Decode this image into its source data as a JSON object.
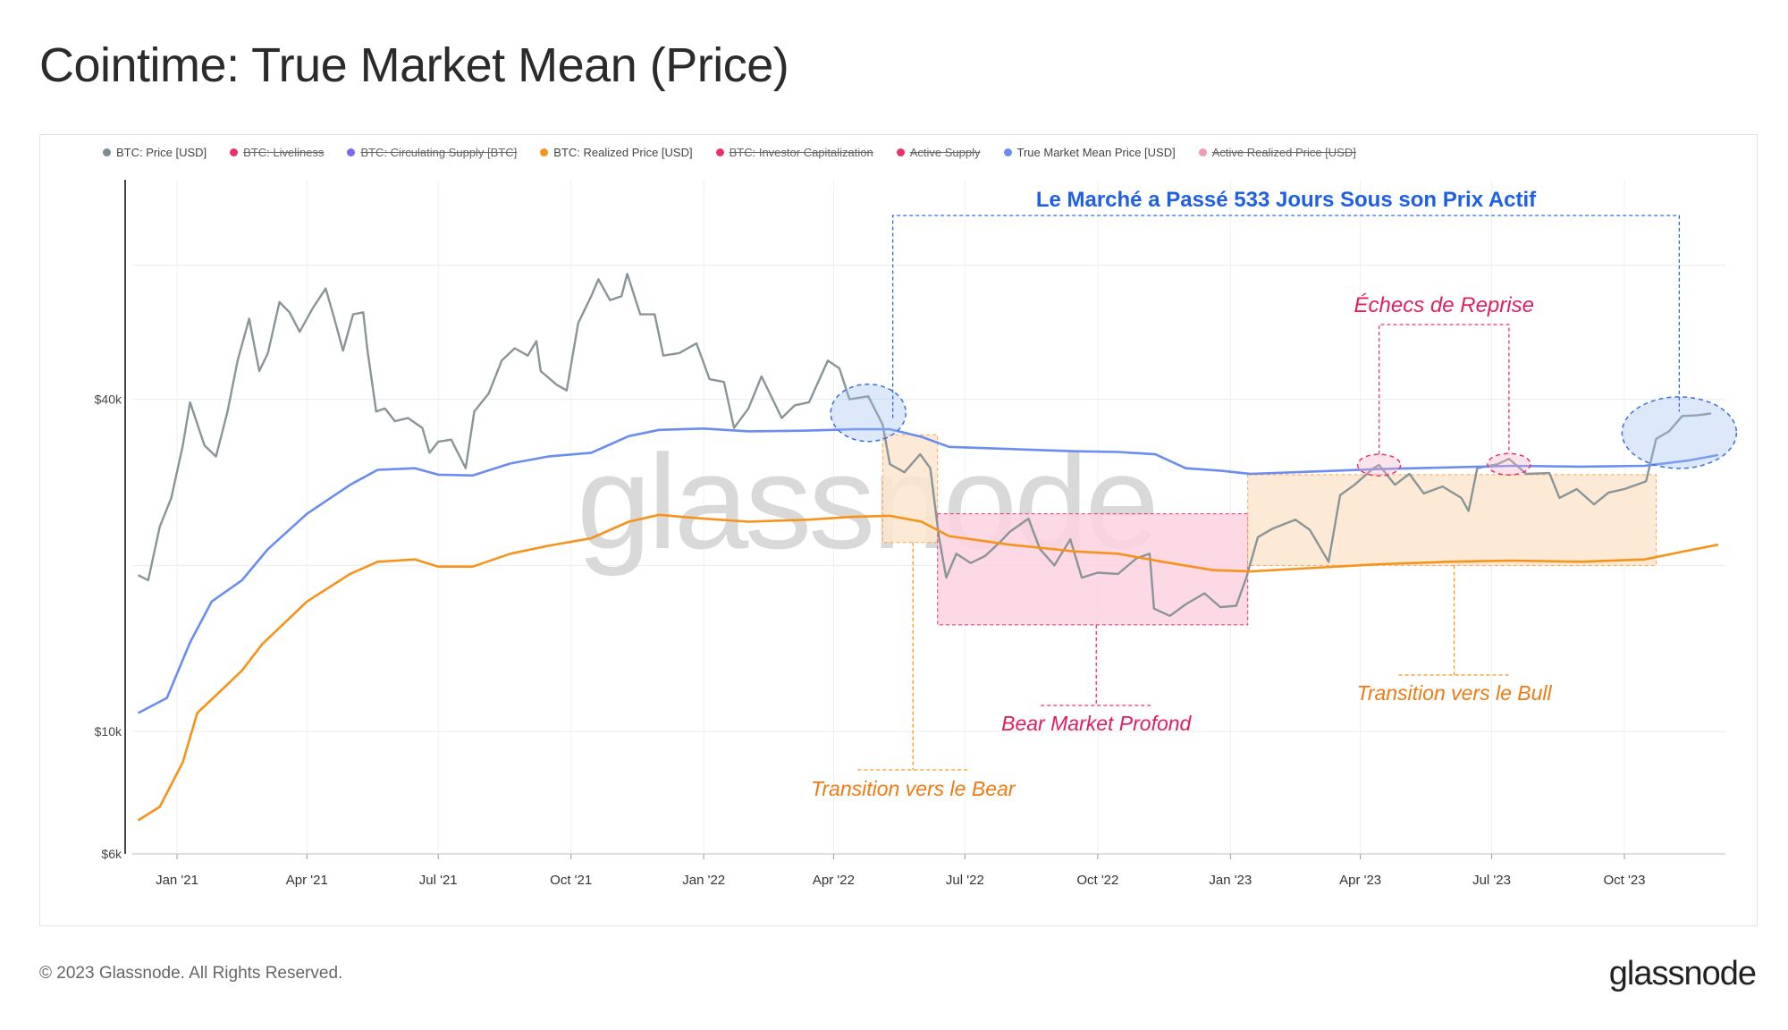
{
  "title": "Cointime: True Market Mean (Price)",
  "footer": {
    "copyright": "© 2023 Glassnode. All Rights Reserved.",
    "logo_text": "glassnode"
  },
  "watermark": "glassnode",
  "legend": [
    {
      "label": "BTC: Price [USD]",
      "color": "#7f8c8d",
      "active": true
    },
    {
      "label": "BTC: Liveliness",
      "color": "#e8336a",
      "active": false
    },
    {
      "label": "BTC: Circulating Supply [BTC]",
      "color": "#7b68ee",
      "active": false
    },
    {
      "label": "BTC: Realized Price [USD]",
      "color": "#f7931a",
      "active": true
    },
    {
      "label": "BTC: Investor Capitalization",
      "color": "#e8336a",
      "active": false
    },
    {
      "label": "Active Supply",
      "color": "#e8336a",
      "active": false
    },
    {
      "label": "True Market Mean Price [USD]",
      "color": "#6b8cf0",
      "active": true
    },
    {
      "label": "Active Realized Price [USD]",
      "color": "#f39ab8",
      "active": false
    }
  ],
  "annotations": {
    "days_below": "Le Marché a Passé 533 Jours Sous son Prix Actif",
    "failed_recovery": "Échecs de Reprise",
    "deep_bear": "Bear Market Profond",
    "to_bear": "Transition vers le Bear",
    "to_bull": "Transition vers le Bull"
  },
  "chart_data": {
    "type": "line",
    "y_scale": "log",
    "ylim": [
      6000,
      100000
    ],
    "y_ticks": [
      {
        "value": 6000,
        "label": "$6k"
      },
      {
        "value": 10000,
        "label": "$10k"
      },
      {
        "value": 40000,
        "label": "$40k"
      }
    ],
    "x_ticks": [
      {
        "date": "2021-01-01",
        "label": "Jan '21"
      },
      {
        "date": "2021-04-01",
        "label": "Apr '21"
      },
      {
        "date": "2021-07-01",
        "label": "Jul '21"
      },
      {
        "date": "2021-10-01",
        "label": "Oct '21"
      },
      {
        "date": "2022-01-01",
        "label": "Jan '22"
      },
      {
        "date": "2022-04-01",
        "label": "Apr '22"
      },
      {
        "date": "2022-07-01",
        "label": "Jul '22"
      },
      {
        "date": "2022-10-01",
        "label": "Oct '22"
      },
      {
        "date": "2023-01-01",
        "label": "Jan '23"
      },
      {
        "date": "2023-04-01",
        "label": "Apr '23"
      },
      {
        "date": "2023-07-01",
        "label": "Jul '23"
      },
      {
        "date": "2023-10-01",
        "label": "Oct '23"
      }
    ],
    "xlim": [
      "2020-12-01",
      "2023-12-10"
    ],
    "series": [
      {
        "name": "BTC: Price [USD]",
        "color": "#8a9598",
        "points": [
          [
            "2020-12-05",
            19200
          ],
          [
            "2020-12-12",
            18800
          ],
          [
            "2020-12-20",
            23500
          ],
          [
            "2020-12-28",
            26500
          ],
          [
            "2021-01-05",
            33000
          ],
          [
            "2021-01-10",
            39500
          ],
          [
            "2021-01-20",
            33000
          ],
          [
            "2021-01-28",
            31500
          ],
          [
            "2021-02-05",
            38000
          ],
          [
            "2021-02-12",
            47000
          ],
          [
            "2021-02-20",
            56000
          ],
          [
            "2021-02-27",
            45000
          ],
          [
            "2021-03-05",
            48500
          ],
          [
            "2021-03-13",
            60000
          ],
          [
            "2021-03-20",
            57500
          ],
          [
            "2021-03-27",
            53000
          ],
          [
            "2021-04-05",
            58500
          ],
          [
            "2021-04-14",
            63500
          ],
          [
            "2021-04-20",
            56000
          ],
          [
            "2021-04-26",
            49000
          ],
          [
            "2021-05-03",
            57000
          ],
          [
            "2021-05-10",
            57500
          ],
          [
            "2021-05-13",
            49000
          ],
          [
            "2021-05-19",
            38000
          ],
          [
            "2021-05-25",
            38500
          ],
          [
            "2021-06-01",
            36500
          ],
          [
            "2021-06-10",
            37000
          ],
          [
            "2021-06-20",
            35500
          ],
          [
            "2021-06-25",
            32000
          ],
          [
            "2021-07-01",
            33500
          ],
          [
            "2021-07-10",
            33800
          ],
          [
            "2021-07-20",
            30000
          ],
          [
            "2021-07-26",
            38000
          ],
          [
            "2021-08-05",
            41000
          ],
          [
            "2021-08-14",
            47000
          ],
          [
            "2021-08-23",
            49500
          ],
          [
            "2021-09-01",
            48000
          ],
          [
            "2021-09-07",
            51000
          ],
          [
            "2021-09-10",
            45000
          ],
          [
            "2021-09-21",
            42500
          ],
          [
            "2021-09-28",
            41500
          ],
          [
            "2021-10-06",
            55000
          ],
          [
            "2021-10-15",
            61500
          ],
          [
            "2021-10-20",
            66000
          ],
          [
            "2021-10-28",
            60500
          ],
          [
            "2021-11-05",
            61500
          ],
          [
            "2021-11-09",
            67500
          ],
          [
            "2021-11-18",
            57000
          ],
          [
            "2021-11-28",
            57000
          ],
          [
            "2021-12-04",
            48000
          ],
          [
            "2021-12-15",
            48500
          ],
          [
            "2021-12-27",
            50500
          ],
          [
            "2022-01-05",
            43500
          ],
          [
            "2022-01-15",
            43000
          ],
          [
            "2022-01-22",
            35500
          ],
          [
            "2022-02-01",
            38500
          ],
          [
            "2022-02-10",
            44000
          ],
          [
            "2022-02-24",
            37000
          ],
          [
            "2022-03-05",
            39000
          ],
          [
            "2022-03-15",
            39500
          ],
          [
            "2022-03-28",
            47000
          ],
          [
            "2022-04-05",
            45500
          ],
          [
            "2022-04-12",
            40000
          ],
          [
            "2022-04-25",
            40500
          ],
          [
            "2022-05-05",
            36000
          ],
          [
            "2022-05-10",
            30500
          ],
          [
            "2022-05-20",
            29500
          ],
          [
            "2022-05-31",
            31800
          ],
          [
            "2022-06-07",
            30000
          ],
          [
            "2022-06-13",
            22500
          ],
          [
            "2022-06-18",
            19000
          ],
          [
            "2022-06-25",
            21000
          ],
          [
            "2022-07-05",
            20200
          ],
          [
            "2022-07-15",
            20800
          ],
          [
            "2022-07-25",
            22000
          ],
          [
            "2022-08-01",
            23000
          ],
          [
            "2022-08-14",
            24300
          ],
          [
            "2022-08-22",
            21400
          ],
          [
            "2022-09-01",
            20000
          ],
          [
            "2022-09-12",
            22300
          ],
          [
            "2022-09-20",
            19000
          ],
          [
            "2022-10-01",
            19400
          ],
          [
            "2022-10-15",
            19300
          ],
          [
            "2022-10-28",
            20600
          ],
          [
            "2022-11-06",
            21000
          ],
          [
            "2022-11-09",
            16700
          ],
          [
            "2022-11-20",
            16200
          ],
          [
            "2022-12-01",
            17000
          ],
          [
            "2022-12-14",
            17800
          ],
          [
            "2022-12-25",
            16800
          ],
          [
            "2023-01-05",
            16900
          ],
          [
            "2023-01-12",
            19000
          ],
          [
            "2023-01-20",
            22500
          ],
          [
            "2023-01-30",
            23300
          ],
          [
            "2023-02-15",
            24200
          ],
          [
            "2023-02-25",
            23200
          ],
          [
            "2023-03-10",
            20300
          ],
          [
            "2023-03-18",
            26800
          ],
          [
            "2023-03-28",
            28000
          ],
          [
            "2023-04-10",
            30000
          ],
          [
            "2023-04-14",
            30400
          ],
          [
            "2023-04-25",
            28000
          ],
          [
            "2023-05-05",
            29300
          ],
          [
            "2023-05-15",
            27000
          ],
          [
            "2023-05-28",
            27800
          ],
          [
            "2023-06-10",
            26500
          ],
          [
            "2023-06-15",
            25100
          ],
          [
            "2023-06-21",
            30000
          ],
          [
            "2023-07-05",
            30500
          ],
          [
            "2023-07-13",
            31200
          ],
          [
            "2023-07-25",
            29300
          ],
          [
            "2023-08-10",
            29400
          ],
          [
            "2023-08-17",
            26500
          ],
          [
            "2023-08-29",
            27500
          ],
          [
            "2023-09-10",
            25800
          ],
          [
            "2023-09-20",
            27100
          ],
          [
            "2023-10-01",
            27500
          ],
          [
            "2023-10-16",
            28400
          ],
          [
            "2023-10-23",
            33900
          ],
          [
            "2023-11-01",
            35000
          ],
          [
            "2023-11-10",
            37300
          ],
          [
            "2023-11-20",
            37400
          ],
          [
            "2023-11-30",
            37700
          ]
        ]
      },
      {
        "name": "BTC: Realized Price [USD]",
        "color": "#f7931a",
        "points": [
          [
            "2020-12-05",
            6900
          ],
          [
            "2020-12-20",
            7300
          ],
          [
            "2021-01-05",
            8800
          ],
          [
            "2021-01-15",
            10800
          ],
          [
            "2021-02-01",
            11900
          ],
          [
            "2021-02-15",
            12900
          ],
          [
            "2021-03-01",
            14400
          ],
          [
            "2021-04-01",
            17200
          ],
          [
            "2021-05-01",
            19300
          ],
          [
            "2021-05-20",
            20300
          ],
          [
            "2021-06-15",
            20500
          ],
          [
            "2021-07-01",
            19900
          ],
          [
            "2021-07-25",
            19900
          ],
          [
            "2021-08-20",
            21000
          ],
          [
            "2021-09-15",
            21700
          ],
          [
            "2021-10-15",
            22400
          ],
          [
            "2021-11-10",
            24000
          ],
          [
            "2021-12-01",
            24700
          ],
          [
            "2022-01-01",
            24300
          ],
          [
            "2022-02-01",
            24000
          ],
          [
            "2022-03-15",
            24200
          ],
          [
            "2022-04-15",
            24500
          ],
          [
            "2022-05-10",
            24600
          ],
          [
            "2022-06-01",
            24000
          ],
          [
            "2022-06-20",
            22600
          ],
          [
            "2022-08-01",
            21800
          ],
          [
            "2022-09-15",
            21200
          ],
          [
            "2022-10-15",
            21000
          ],
          [
            "2022-11-15",
            20300
          ],
          [
            "2022-12-20",
            19600
          ],
          [
            "2023-01-15",
            19500
          ],
          [
            "2023-03-01",
            19800
          ],
          [
            "2023-04-15",
            20100
          ],
          [
            "2023-06-01",
            20300
          ],
          [
            "2023-07-15",
            20400
          ],
          [
            "2023-09-01",
            20300
          ],
          [
            "2023-10-15",
            20500
          ],
          [
            "2023-11-15",
            21300
          ],
          [
            "2023-12-05",
            21800
          ]
        ]
      },
      {
        "name": "True Market Mean Price [USD]",
        "color": "#6b8cf0",
        "points": [
          [
            "2020-12-05",
            10800
          ],
          [
            "2020-12-25",
            11500
          ],
          [
            "2021-01-10",
            14500
          ],
          [
            "2021-01-25",
            17200
          ],
          [
            "2021-02-15",
            18800
          ],
          [
            "2021-03-05",
            21400
          ],
          [
            "2021-04-01",
            24800
          ],
          [
            "2021-05-01",
            28000
          ],
          [
            "2021-05-20",
            29800
          ],
          [
            "2021-06-15",
            30000
          ],
          [
            "2021-07-01",
            29200
          ],
          [
            "2021-07-25",
            29100
          ],
          [
            "2021-08-20",
            30600
          ],
          [
            "2021-09-15",
            31500
          ],
          [
            "2021-10-15",
            32000
          ],
          [
            "2021-11-10",
            34300
          ],
          [
            "2021-12-01",
            35200
          ],
          [
            "2022-01-01",
            35400
          ],
          [
            "2022-02-01",
            35000
          ],
          [
            "2022-03-15",
            35100
          ],
          [
            "2022-04-15",
            35300
          ],
          [
            "2022-05-10",
            35300
          ],
          [
            "2022-06-01",
            34200
          ],
          [
            "2022-06-20",
            32800
          ],
          [
            "2022-08-01",
            32500
          ],
          [
            "2022-09-15",
            32200
          ],
          [
            "2022-10-15",
            32100
          ],
          [
            "2022-11-10",
            31800
          ],
          [
            "2022-12-01",
            30000
          ],
          [
            "2022-12-25",
            29700
          ],
          [
            "2023-01-15",
            29300
          ],
          [
            "2023-03-01",
            29600
          ],
          [
            "2023-04-15",
            29900
          ],
          [
            "2023-06-01",
            30100
          ],
          [
            "2023-07-15",
            30300
          ],
          [
            "2023-09-01",
            30200
          ],
          [
            "2023-10-15",
            30300
          ],
          [
            "2023-11-15",
            31000
          ],
          [
            "2023-12-05",
            31700
          ]
        ]
      }
    ],
    "regions": [
      {
        "name": "transition-to-bear",
        "start": "2022-05-05",
        "end": "2022-06-12",
        "top": 34500,
        "bottom": 22000,
        "fill": "#fde6cf",
        "stroke": "#f7a55a"
      },
      {
        "name": "deep-bear-market",
        "start": "2022-06-12",
        "end": "2023-01-13",
        "top": 24800,
        "bottom": 15600,
        "fill": "#fdd2e2",
        "stroke": "#e8336a"
      },
      {
        "name": "transition-to-bull",
        "start": "2023-01-13",
        "end": "2023-10-23",
        "top": 29200,
        "bottom": 20000,
        "fill": "#fde6cf",
        "stroke": "#f7a55a"
      }
    ]
  }
}
